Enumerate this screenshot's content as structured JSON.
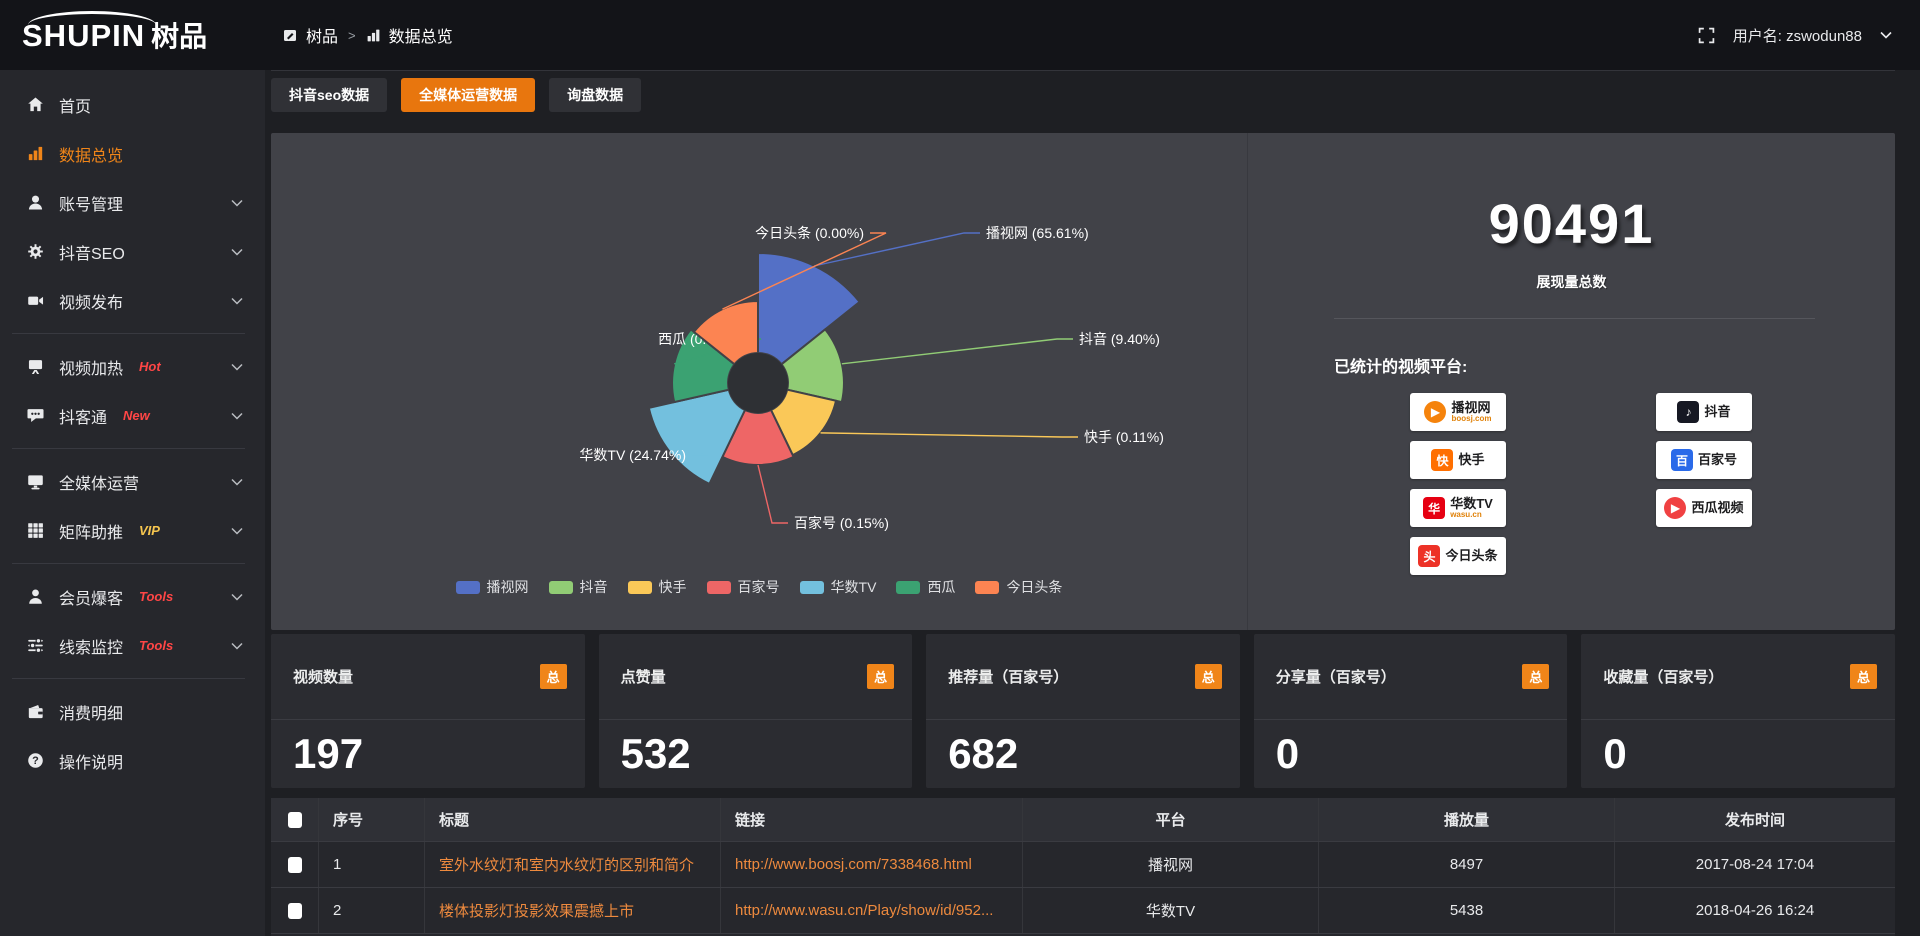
{
  "topbar": {
    "logo_text": "SHUPIN",
    "logo_cn": "树品",
    "breadcrumb_root": "树品",
    "breadcrumb_sep": ">",
    "breadcrumb_current": "数据总览",
    "username": "用户名: zswodun88"
  },
  "sidebar": {
    "items": [
      {
        "label": "首页",
        "icon": "home-icon"
      },
      {
        "label": "数据总览",
        "icon": "bar-chart-icon",
        "active": true
      },
      {
        "label": "账号管理",
        "icon": "user-icon",
        "chevron": true
      },
      {
        "label": "抖音SEO",
        "icon": "gear-icon",
        "chevron": true
      },
      {
        "label": "视频发布",
        "icon": "video-icon",
        "chevron": true,
        "divider_after": true
      },
      {
        "label": "视频加热",
        "icon": "heat-icon",
        "chevron": true,
        "badge": "Hot",
        "badge_color": "#ff4646"
      },
      {
        "label": "抖客通",
        "icon": "chat-icon",
        "chevron": true,
        "badge": "New",
        "badge_color": "#ff4646",
        "divider_after": true
      },
      {
        "label": "全媒体运营",
        "icon": "monitor-icon",
        "chevron": true
      },
      {
        "label": "矩阵助推",
        "icon": "grid-icon",
        "chevron": true,
        "badge": "VIP",
        "badge_color": "#f6c64f",
        "divider_after": true
      },
      {
        "label": "会员爆客",
        "icon": "member-icon",
        "chevron": true,
        "badge": "Tools",
        "badge_color": "#ff4646"
      },
      {
        "label": "线索监控",
        "icon": "sliders-icon",
        "chevron": true,
        "badge": "Tools",
        "badge_color": "#ff4646",
        "divider_after": true
      },
      {
        "label": "消费明细",
        "icon": "wallet-icon"
      },
      {
        "label": "操作说明",
        "icon": "question-icon"
      }
    ]
  },
  "tabs": [
    {
      "label": "抖音seo数据",
      "active": false
    },
    {
      "label": "全媒体运营数据",
      "active": true
    },
    {
      "label": "询盘数据",
      "active": false
    }
  ],
  "chart_data": {
    "type": "pie",
    "subtype": "nightingale-rose",
    "categories": [
      "播视网",
      "抖音",
      "快手",
      "百家号",
      "华数TV",
      "西瓜",
      "今日头条"
    ],
    "values": [
      65.61,
      9.4,
      0.11,
      0.15,
      24.74,
      0.0,
      0.0
    ],
    "unit": "%",
    "labels": [
      "播视网 (65.61%)",
      "抖音 (9.40%)",
      "快手 (0.11%)",
      "百家号 (0.15%)",
      "华数TV (24.74%)",
      "西瓜 (0.00%)",
      "今日头条 (0.00%)"
    ],
    "colors": [
      "#5470c6",
      "#91cc75",
      "#fac858",
      "#ee6666",
      "#73c0de",
      "#3ba272",
      "#fc8452"
    ],
    "legend_position": "bottom",
    "display_radii": [
      130,
      86,
      80,
      82,
      112,
      86,
      82
    ]
  },
  "summary": {
    "total_value": "90491",
    "total_label": "展现量总数",
    "platforms_label": "已统计的视频平台:",
    "platforms": [
      {
        "name": "播视网",
        "sub": "boosj.com",
        "color": "#f5830c",
        "glyph": "▶",
        "shape": "round"
      },
      {
        "name": "抖音",
        "color": "#161823",
        "glyph": "♪",
        "shape": "square"
      },
      {
        "name": "快手",
        "color": "#ff6f00",
        "glyph": "快",
        "shape": "square"
      },
      {
        "name": "百家号",
        "color": "#2a6ae9",
        "glyph": "百",
        "shape": "square"
      },
      {
        "name": "华数TV",
        "sub": "wasu.cn",
        "color": "#e60012",
        "glyph": "华",
        "shape": "square"
      },
      {
        "name": "西瓜视频",
        "color": "#f04142",
        "glyph": "▶",
        "shape": "round"
      },
      {
        "name": "今日头条",
        "color": "#ed3227",
        "glyph": "头",
        "shape": "square"
      }
    ]
  },
  "stat_cards": [
    {
      "title": "视频数量",
      "badge": "总",
      "value": "197"
    },
    {
      "title": "点赞量",
      "badge": "总",
      "value": "532"
    },
    {
      "title": "推荐量（百家号）",
      "badge": "总",
      "value": "682"
    },
    {
      "title": "分享量（百家号）",
      "badge": "总",
      "value": "0"
    },
    {
      "title": "收藏量（百家号）",
      "badge": "总",
      "value": "0"
    }
  ],
  "table": {
    "headers": [
      "序号",
      "标题",
      "链接",
      "平台",
      "播放量",
      "发布时间"
    ],
    "rows": [
      {
        "index": "1",
        "title": "室外水纹灯和室内水纹灯的区别和简介",
        "link": "http://www.boosj.com/7338468.html",
        "platform": "播视网",
        "plays": "8497",
        "time": "2017-08-24 17:04"
      },
      {
        "index": "2",
        "title": "楼体投影灯投影效果震撼上市",
        "link": "http://www.wasu.cn/Play/show/id/952...",
        "platform": "华数TV",
        "plays": "5438",
        "time": "2018-04-26 16:24"
      }
    ]
  },
  "colors": {
    "accent": "#e8760e",
    "badge": "#f08519",
    "link": "#ee8a3e",
    "panel_bg": "#414248",
    "sidebar_bg": "#26272c",
    "topbar_bg": "#131418"
  }
}
